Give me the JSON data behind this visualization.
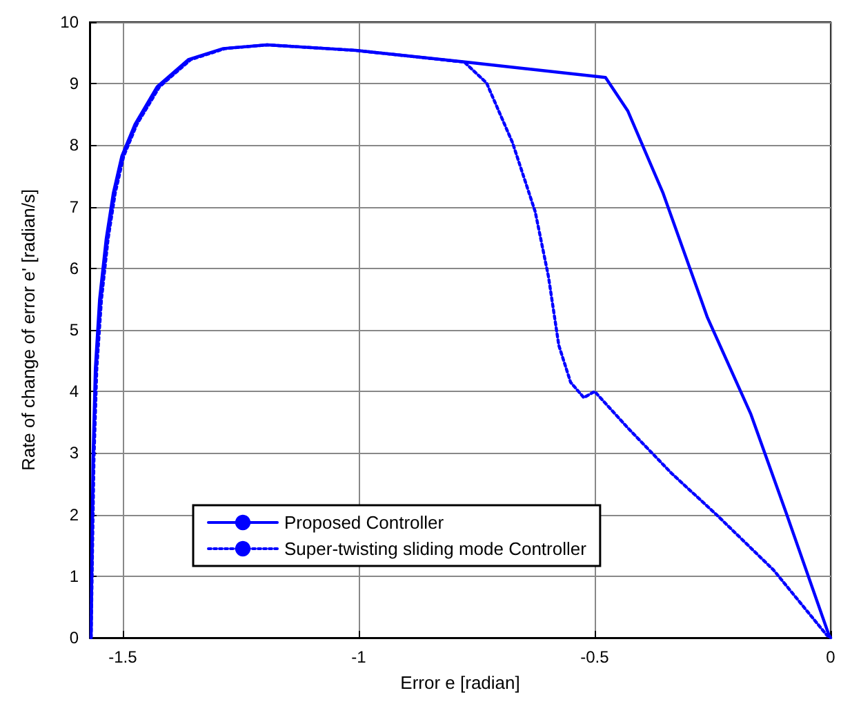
{
  "chart_data": {
    "type": "line",
    "xlabel": "Error e [radian]",
    "ylabel": "Rate of change of error e' [radian/s]",
    "xlim": [
      -1.57,
      0
    ],
    "xticks": [
      -1.5,
      -1,
      -0.5,
      0
    ],
    "ylim": [
      0,
      10
    ],
    "yticks": [
      0,
      1,
      2,
      3,
      4,
      5,
      6,
      7,
      8,
      9,
      10
    ],
    "grid": true,
    "legend": "bottom",
    "series": [
      {
        "name": "Proposed Controller",
        "color": "#0000ff",
        "line_style": "solid",
        "x": [
          -1.567,
          -1.563,
          -1.558,
          -1.549,
          -1.535,
          -1.52,
          -1.502,
          -1.474,
          -1.427,
          -1.361,
          -1.287,
          -1.194,
          -1.006,
          -0.772,
          -0.5,
          -0.477,
          -0.43,
          -0.355,
          -0.261,
          -0.169,
          -0.093,
          -0.004,
          0
        ],
        "values": [
          0,
          2.9,
          4.37,
          5.5,
          6.48,
          7.22,
          7.82,
          8.34,
          8.95,
          9.39,
          9.57,
          9.63,
          9.54,
          9.35,
          9.12,
          9.1,
          8.56,
          7.22,
          5.2,
          3.63,
          2.0,
          0.05,
          0
        ]
      },
      {
        "name": "Super-twisting sliding mode Controller",
        "color": "#0000ff",
        "line_style": "dotted",
        "x": [
          -1.567,
          -1.561,
          -1.555,
          -1.545,
          -1.531,
          -1.516,
          -1.498,
          -1.47,
          -1.422,
          -1.356,
          -1.283,
          -1.194,
          -1.006,
          -0.776,
          -0.729,
          -0.674,
          -0.626,
          -0.598,
          -0.576,
          -0.551,
          -0.523,
          -0.5,
          -0.43,
          -0.337,
          -0.242,
          -0.121,
          -0.008,
          0
        ],
        "values": [
          0,
          2.9,
          4.37,
          5.5,
          6.48,
          7.22,
          7.82,
          8.34,
          8.95,
          9.39,
          9.57,
          9.63,
          9.54,
          9.35,
          9.01,
          8.04,
          6.92,
          5.87,
          4.75,
          4.15,
          3.9,
          4.0,
          3.41,
          2.67,
          2.0,
          1.1,
          0.04,
          0
        ]
      }
    ]
  }
}
